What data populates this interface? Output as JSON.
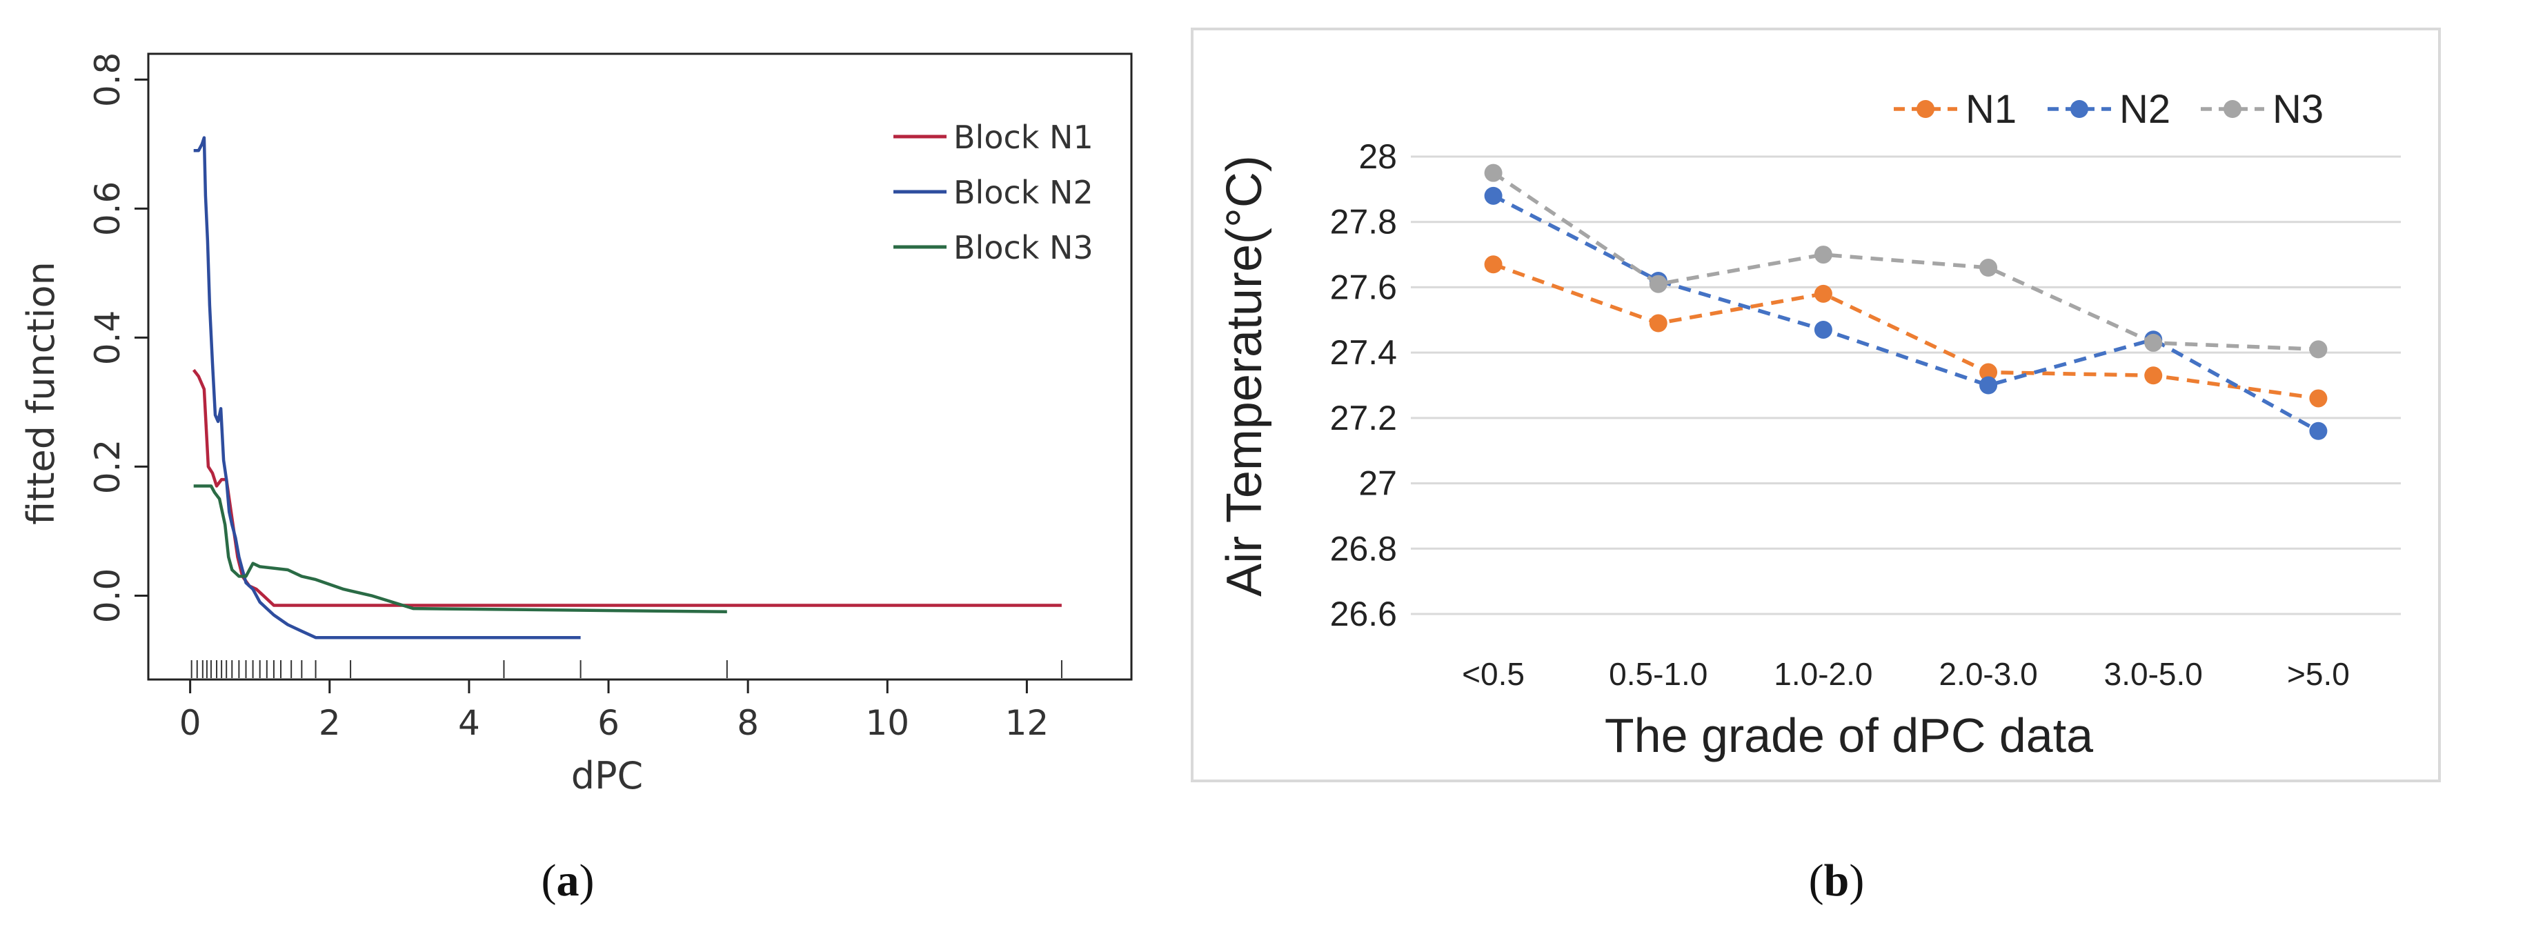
{
  "panels": {
    "a": {
      "caption_open": "(",
      "caption_letter": "a",
      "caption_close": ")"
    },
    "b": {
      "caption_open": "(",
      "caption_letter": "b",
      "caption_close": ")"
    }
  },
  "chart_data": [
    {
      "id": "a",
      "type": "line",
      "title": "",
      "xlabel": "dPC",
      "ylabel": "fitted function",
      "xlim": [
        -0.6,
        13.5
      ],
      "ylim": [
        -0.13,
        0.84
      ],
      "xticks": [
        0,
        2,
        4,
        6,
        8,
        10,
        12
      ],
      "yticks": [
        0.0,
        0.2,
        0.4,
        0.6,
        0.8
      ],
      "ytick_labels": [
        "0.0",
        "0.2",
        "0.4",
        "0.6",
        "0.8"
      ],
      "legend_position": "top-right",
      "series": [
        {
          "name": "Block N1",
          "color": "#b5253f",
          "x": [
            0.05,
            0.12,
            0.2,
            0.26,
            0.32,
            0.38,
            0.45,
            0.52,
            0.6,
            0.68,
            0.75,
            0.85,
            0.95,
            1.05,
            1.2,
            12.5
          ],
          "y": [
            0.35,
            0.34,
            0.32,
            0.2,
            0.19,
            0.17,
            0.18,
            0.18,
            0.12,
            0.06,
            0.03,
            0.015,
            0.01,
            0.0,
            -0.015,
            -0.015
          ]
        },
        {
          "name": "Block N2",
          "color": "#2e4d9e",
          "x": [
            0.05,
            0.12,
            0.17,
            0.2,
            0.22,
            0.25,
            0.28,
            0.32,
            0.36,
            0.4,
            0.44,
            0.48,
            0.52,
            0.56,
            0.6,
            0.65,
            0.7,
            0.75,
            0.8,
            0.9,
            1.0,
            1.2,
            1.4,
            1.6,
            1.8,
            5.6
          ],
          "y": [
            0.69,
            0.69,
            0.7,
            0.71,
            0.62,
            0.55,
            0.45,
            0.36,
            0.28,
            0.27,
            0.29,
            0.21,
            0.18,
            0.13,
            0.11,
            0.09,
            0.06,
            0.04,
            0.02,
            0.01,
            -0.01,
            -0.03,
            -0.045,
            -0.055,
            -0.065,
            -0.065
          ]
        },
        {
          "name": "Block N3",
          "color": "#2a6b45",
          "x": [
            0.05,
            0.3,
            0.35,
            0.42,
            0.5,
            0.55,
            0.6,
            0.7,
            0.8,
            0.9,
            1.0,
            1.4,
            1.6,
            1.8,
            2.2,
            2.6,
            3.2,
            7.7
          ],
          "y": [
            0.17,
            0.17,
            0.16,
            0.15,
            0.11,
            0.06,
            0.04,
            0.03,
            0.03,
            0.05,
            0.045,
            0.04,
            0.03,
            0.025,
            0.01,
            0.0,
            -0.02,
            -0.025
          ]
        }
      ],
      "rug": [
        0.02,
        0.1,
        0.18,
        0.24,
        0.3,
        0.38,
        0.45,
        0.52,
        0.6,
        0.7,
        0.8,
        0.9,
        1.0,
        1.1,
        1.2,
        1.3,
        1.45,
        1.6,
        1.8,
        2.3,
        4.5,
        5.6,
        7.7,
        12.5
      ]
    },
    {
      "id": "b",
      "type": "line",
      "title": "",
      "xlabel": "The grade of dPC data",
      "ylabel": "Air Temperature(°C)",
      "categories": [
        "<0.5",
        "0.5-1.0",
        "1.0-2.0",
        "2.0-3.0",
        "3.0-5.0",
        ">5.0"
      ],
      "ylim": [
        26.6,
        28
      ],
      "yticks": [
        26.6,
        26.8,
        27,
        27.2,
        27.4,
        27.6,
        27.8,
        28
      ],
      "ytick_labels": [
        "26.6",
        "26.8",
        "27",
        "27.2",
        "27.4",
        "27.6",
        "27.8",
        "28"
      ],
      "grid": true,
      "legend_position": "top-right",
      "series": [
        {
          "name": "N1",
          "color": "#ed7d31",
          "values": [
            27.67,
            27.49,
            27.58,
            27.34,
            27.33,
            27.26
          ]
        },
        {
          "name": "N2",
          "color": "#4472c4",
          "values": [
            27.88,
            27.62,
            27.47,
            27.3,
            27.44,
            27.16
          ]
        },
        {
          "name": "N3",
          "color": "#a5a5a5",
          "values": [
            27.95,
            27.61,
            27.7,
            27.66,
            27.43,
            27.41
          ]
        }
      ]
    }
  ]
}
